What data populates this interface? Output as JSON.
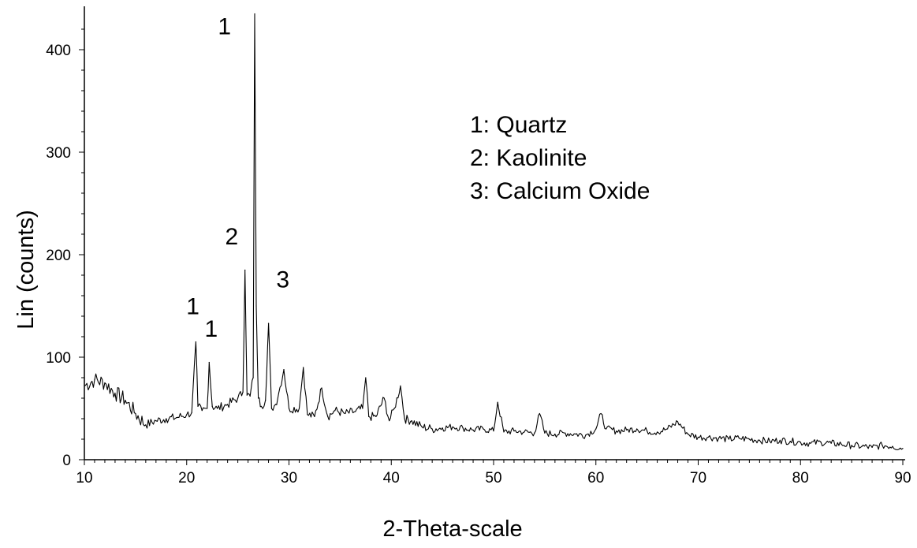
{
  "chart_data": {
    "type": "line",
    "title": "",
    "xlabel": "2-Theta-scale",
    "ylabel": "Lin (counts)",
    "xlim": [
      10,
      90
    ],
    "ylim": [
      0,
      435
    ],
    "x_ticks": [
      10,
      20,
      30,
      40,
      50,
      60,
      70,
      80,
      90
    ],
    "y_ticks": [
      0,
      100,
      200,
      300,
      400
    ],
    "grid": false,
    "legend_position": "top-right",
    "legend": [
      "1: Quartz",
      "2: Kaolinite",
      "3: Calcium Oxide"
    ],
    "series": [
      {
        "color": "#000000",
        "x": [
          10,
          11,
          12,
          13,
          14,
          15,
          16,
          17,
          18,
          19,
          20,
          20.5,
          20.9,
          21.1,
          21.5,
          22,
          22.2,
          22.5,
          23,
          24,
          25,
          25.5,
          25.7,
          25.9,
          26.2,
          26.5,
          26.65,
          26.8,
          27,
          27.3,
          27.7,
          28.0,
          28.3,
          28.7,
          29,
          29.5,
          30,
          31,
          31.4,
          31.8,
          32.5,
          33.2,
          33.8,
          34.5,
          35.5,
          36.5,
          37.2,
          37.5,
          37.8,
          38.5,
          39.3,
          39.8,
          40.3,
          40.9,
          41.3,
          42,
          43,
          44,
          45,
          46,
          47,
          48,
          49,
          50,
          50.4,
          51,
          52,
          53,
          54,
          54.5,
          55,
          56,
          57,
          58,
          59,
          60,
          60.5,
          61,
          62,
          63,
          64,
          65,
          66,
          67,
          68,
          69,
          70,
          71,
          72,
          73,
          74,
          75,
          76,
          77,
          78,
          79,
          80,
          81,
          82,
          83,
          84,
          85,
          86,
          87,
          88,
          89,
          90
        ],
        "values": [
          72,
          78,
          75,
          65,
          58,
          45,
          34,
          38,
          40,
          41,
          44,
          46,
          115,
          52,
          48,
          50,
          95,
          52,
          50,
          54,
          60,
          66,
          185,
          63,
          62,
          80,
          435,
          150,
          60,
          52,
          58,
          133,
          50,
          54,
          65,
          88,
          50,
          50,
          90,
          44,
          42,
          70,
          42,
          48,
          45,
          47,
          50,
          80,
          42,
          42,
          60,
          38,
          50,
          72,
          40,
          38,
          32,
          30,
          31,
          32,
          31,
          29,
          30,
          28,
          56,
          27,
          28,
          27,
          26,
          45,
          26,
          25,
          26,
          25,
          24,
          30,
          45,
          30,
          28,
          29,
          30,
          28,
          27,
          30,
          37,
          25,
          22,
          22,
          21,
          20,
          21,
          20,
          19,
          18,
          19,
          18,
          17,
          16,
          17,
          16,
          15,
          14,
          13,
          12,
          14,
          13,
          11
        ]
      }
    ],
    "peak_labels": [
      {
        "text": "1",
        "x": 20.6,
        "y": 142
      },
      {
        "text": "1",
        "x": 22.4,
        "y": 120
      },
      {
        "text": "2",
        "x": 24.4,
        "y": 210
      },
      {
        "text": "1",
        "x": 23.7,
        "y": 415
      },
      {
        "text": "3",
        "x": 29.4,
        "y": 168
      }
    ]
  }
}
